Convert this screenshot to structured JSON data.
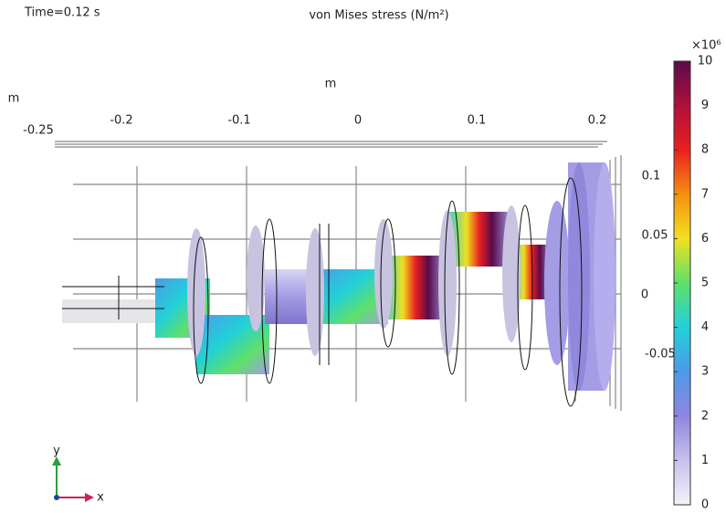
{
  "header": {
    "time": "Time=0.12 s",
    "title": "von Mises stress (N/m²)"
  },
  "axes": {
    "x_unit": "m",
    "y_unit": "m",
    "x_ticks": [
      "-0.25",
      "-0.2",
      "-0.1",
      "0",
      "0.1",
      "0.2"
    ],
    "y_ticks": [
      "0.1",
      "0.05",
      "0",
      "-0.05"
    ]
  },
  "colorbar": {
    "multiplier": "×10⁶",
    "ticks": [
      "10",
      "9",
      "8",
      "7",
      "6",
      "5",
      "4",
      "3",
      "2",
      "1",
      "0"
    ]
  },
  "triad": {
    "y": "y",
    "x": "x"
  }
}
